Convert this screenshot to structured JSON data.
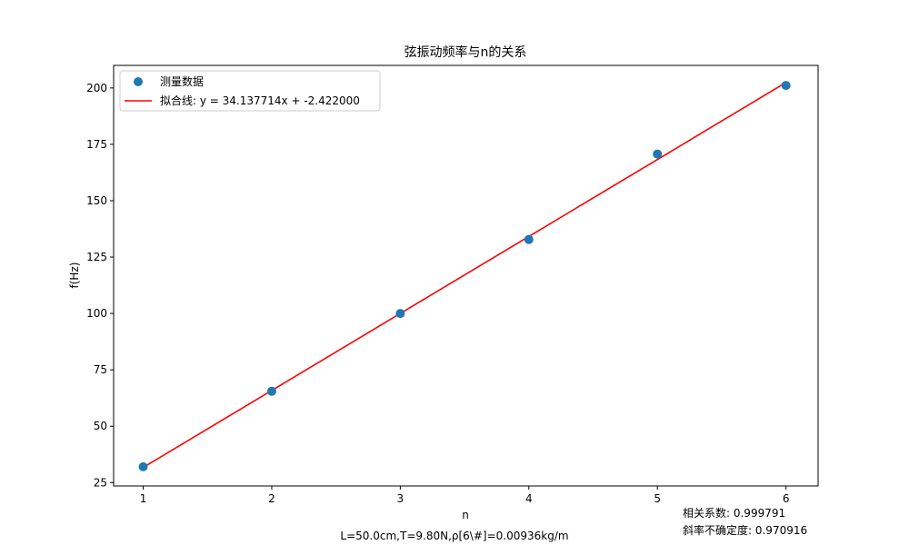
{
  "chart_data": {
    "type": "scatter",
    "title": "弦振动频率与n的关系",
    "xlabel": "n",
    "ylabel": "f(Hz)",
    "xlim": [
      0.77,
      6.25
    ],
    "ylim": [
      23.5,
      210
    ],
    "xticks": [
      1,
      2,
      3,
      4,
      5,
      6
    ],
    "yticks": [
      25,
      50,
      75,
      100,
      125,
      150,
      175,
      200
    ],
    "grid": false,
    "legend_position": "top-left",
    "series": [
      {
        "name": "测量数据",
        "kind": "scatter",
        "color": "#1f77b4",
        "x": [
          1,
          2,
          3,
          4,
          5,
          6
        ],
        "y": [
          32.0,
          65.5,
          100.0,
          132.8,
          170.7,
          201.1
        ]
      },
      {
        "name": "拟合线: y = 34.137714x + -2.422000",
        "kind": "line",
        "color": "#ff0000",
        "slope": 34.137714,
        "intercept": -2.422,
        "x": [
          1,
          6
        ]
      }
    ],
    "annotations": {
      "params": "L=50.0cm,T=9.80N,ρ[6\\#]=0.00936kg/m",
      "correlation": "相关系数: 0.999791",
      "slope_uncertainty": "斜率不确定度: 0.970916"
    }
  }
}
